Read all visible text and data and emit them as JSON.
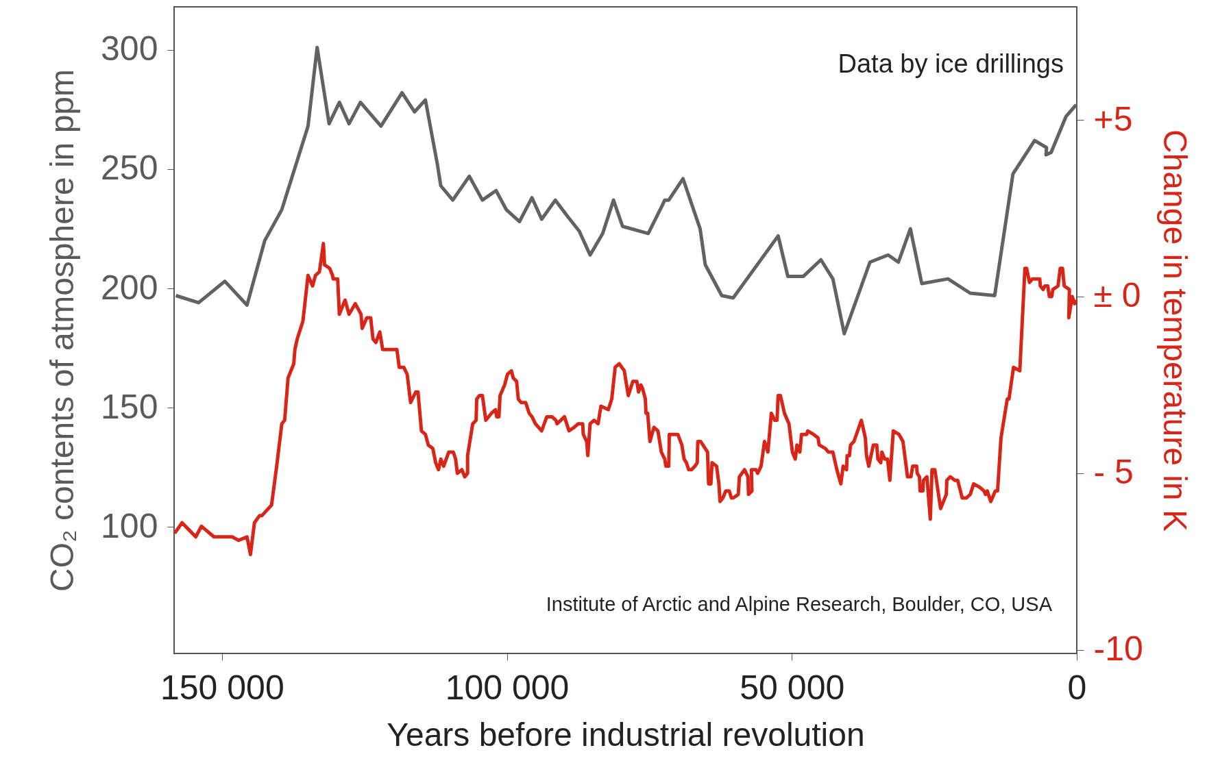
{
  "chart_data": {
    "type": "line",
    "xlabel": "Years before industrial revolution",
    "ylabel": "CO₂ contents of atmosphere in ppm",
    "y2label": "Change in temperature in  K",
    "annotations": [
      "Data by ice drillings",
      "Institute of Arctic and Alpine Research, Boulder, CO, USA"
    ],
    "xlim": [
      158400,
      0
    ],
    "xticks": [
      {
        "value": 150000,
        "label": "150 000"
      },
      {
        "value": 100000,
        "label": "100 000"
      },
      {
        "value": 50000,
        "label": "50 000"
      },
      0
    ],
    "ylim": [
      47,
      318
    ],
    "yticks": [
      100,
      150,
      200,
      250,
      300
    ],
    "y2lim": [
      -10.1,
      8.2
    ],
    "y2ticks": [
      {
        "value": 5,
        "label": "+5"
      },
      {
        "value": 0,
        "label": "± 0"
      },
      {
        "value": -5,
        "label": "- 5"
      },
      {
        "value": -10,
        "label": "-10"
      }
    ],
    "series": [
      {
        "color": "#646260",
        "axis": "y",
        "x": [
          158100,
          154100,
          149500,
          145600,
          142500,
          139500,
          134900,
          133300,
          131200,
          129400,
          127700,
          125700,
          122100,
          118400,
          116200,
          114300,
          112200,
          111600,
          109500,
          106600,
          104300,
          101900,
          100100,
          97800,
          95600,
          93900,
          91500,
          89300,
          87300,
          85400,
          83200,
          81300,
          79700,
          75200,
          72900,
          72300,
          71600,
          69100,
          66100,
          65200,
          62300,
          60300,
          52400,
          50700,
          48000,
          44900,
          42800,
          40800,
          36300,
          33100,
          31300,
          29200,
          27200,
          22600,
          18700,
          14400,
          11200,
          7400,
          5300,
          5400,
          4500,
          1900,
          100
        ],
        "values": [
          197,
          194,
          203,
          193,
          220,
          233,
          268,
          301,
          269,
          278,
          269,
          278,
          268,
          282,
          274,
          279,
          252,
          243,
          237,
          247,
          237,
          241,
          233,
          228,
          238,
          229,
          237,
          230,
          224,
          214,
          223,
          237,
          226,
          223,
          234,
          237,
          237,
          246,
          225,
          210,
          197,
          196,
          222,
          205,
          205,
          212,
          204,
          181,
          211,
          214,
          211,
          225,
          202,
          204,
          198,
          197,
          248,
          262,
          259,
          256,
          257,
          272,
          277
        ]
      },
      {
        "color": "#d92518",
        "axis": "y2",
        "x": [
          158300,
          157000,
          154600,
          153600,
          151400,
          150900,
          149500,
          148200,
          147100,
          145600,
          145000,
          144300,
          143400,
          143000,
          141300,
          140400,
          139500,
          139000,
          138400,
          137400,
          137200,
          136800,
          135800,
          134900,
          134100,
          133600,
          132900,
          132200,
          132000,
          131100,
          130600,
          130500,
          129700,
          129400,
          128400,
          127700,
          126600,
          125600,
          125400,
          124600,
          123900,
          123500,
          123000,
          122300,
          121800,
          120800,
          119300,
          118900,
          118100,
          117500,
          116900,
          116000,
          115600,
          115000,
          114300,
          113800,
          113000,
          112500,
          112000,
          111600,
          111100,
          110200,
          109400,
          109000,
          108700,
          107900,
          107400,
          106900,
          106900,
          106000,
          105400,
          105300,
          104800,
          104300,
          103700,
          102700,
          102000,
          101800,
          101400,
          101200,
          100400,
          99900,
          99200,
          98900,
          98300,
          98000,
          97500,
          96700,
          96100,
          95600,
          95000,
          93900,
          93000,
          92100,
          91400,
          91200,
          89900,
          89100,
          88200,
          87500,
          86700,
          86600,
          86000,
          85800,
          85400,
          84700,
          84000,
          83500,
          82200,
          81600,
          81000,
          80300,
          79400,
          79000,
          78700,
          77900,
          77200,
          76900,
          76500,
          76200,
          75700,
          75600,
          75300,
          74900,
          74200,
          73500,
          72900,
          72300,
          72100,
          71600,
          71500,
          70000,
          69300,
          68900,
          68500,
          68100,
          67600,
          67000,
          66600,
          66500,
          66000,
          64800,
          64600,
          64200,
          64000,
          63200,
          62800,
          62600,
          62100,
          61600,
          61000,
          60600,
          60300,
          59400,
          59200,
          58300,
          57700,
          57600,
          57000,
          57100,
          56300,
          56000,
          55400,
          54800,
          54200,
          53600,
          53000,
          52600,
          52400,
          52000,
          51300,
          50500,
          49900,
          49400,
          49100,
          48600,
          48300,
          47400,
          47200,
          46200,
          45400,
          45200,
          44100,
          43600,
          42800,
          42100,
          41400,
          41000,
          40400,
          40300,
          39900,
          39700,
          39100,
          37800,
          37100,
          36900,
          36500,
          35700,
          35100,
          34900,
          34400,
          34200,
          33700,
          33200,
          32800,
          32200,
          31200,
          30500,
          29700,
          29100,
          28800,
          28100,
          28000,
          27600,
          27500,
          27000,
          26900,
          26300,
          25700,
          25400,
          24900,
          23900,
          22900,
          22800,
          22200,
          21400,
          20900,
          20100,
          19400,
          18700,
          18100,
          17000,
          16300,
          16000,
          15700,
          15100,
          14300,
          13900,
          13300,
          12200,
          11900,
          11100,
          10000,
          9100,
          8800,
          8300,
          7800,
          7200,
          7000,
          6500,
          6400,
          5900,
          5600,
          5100,
          4800,
          4400,
          4200,
          3300,
          2900,
          2500,
          2200,
          1300,
          1400,
          800,
          400,
          100
        ],
        "values": [
          -6.7,
          -6.4,
          -6.8,
          -6.5,
          -6.8,
          -6.8,
          -6.8,
          -6.8,
          -6.9,
          -6.8,
          -7.3,
          -6.4,
          -6.2,
          -6.2,
          -5.9,
          -4.8,
          -3.6,
          -3.5,
          -2.3,
          -1.9,
          -1.5,
          -1.2,
          -0.7,
          0.6,
          0.3,
          0.6,
          0.7,
          1.5,
          0.9,
          0.8,
          0.6,
          0.5,
          0.5,
          -0.5,
          -0.1,
          -0.5,
          -0.2,
          -0.5,
          -0.9,
          -0.6,
          -0.6,
          -1.2,
          -1.3,
          -1.0,
          -1.5,
          -1.5,
          -1.5,
          -2.0,
          -2.0,
          -2.2,
          -3.0,
          -2.7,
          -2.7,
          -3.8,
          -3.9,
          -4.2,
          -4.3,
          -4.7,
          -4.9,
          -4.6,
          -4.8,
          -4.4,
          -4.4,
          -4.6,
          -5.0,
          -4.9,
          -5.1,
          -5.0,
          -4.5,
          -3.6,
          -3.5,
          -2.9,
          -2.8,
          -2.8,
          -3.5,
          -3.3,
          -3.2,
          -3.4,
          -3.4,
          -2.8,
          -2.5,
          -2.2,
          -2.1,
          -2.3,
          -2.4,
          -2.9,
          -3.0,
          -3.0,
          -3.3,
          -3.4,
          -3.6,
          -3.8,
          -3.4,
          -3.4,
          -3.5,
          -3.6,
          -3.4,
          -3.8,
          -3.7,
          -3.6,
          -3.6,
          -3.9,
          -4.1,
          -4.5,
          -3.6,
          -3.5,
          -3.6,
          -3.1,
          -3.2,
          -2.9,
          -2.0,
          -1.9,
          -2.1,
          -2.5,
          -2.8,
          -2.4,
          -2.4,
          -2.7,
          -2.5,
          -2.6,
          -2.9,
          -3.3,
          -3.3,
          -4.1,
          -3.7,
          -3.8,
          -4.4,
          -4.6,
          -4.8,
          -4.8,
          -3.9,
          -3.9,
          -4.2,
          -4.6,
          -4.7,
          -4.9,
          -4.9,
          -4.8,
          -4.7,
          -4.1,
          -4.1,
          -4.4,
          -5.3,
          -5.3,
          -4.7,
          -4.8,
          -5.3,
          -5.8,
          -5.7,
          -5.5,
          -5.5,
          -5.7,
          -5.7,
          -5.6,
          -5.1,
          -4.9,
          -5.1,
          -5.6,
          -5.5,
          -4.9,
          -4.9,
          -5.0,
          -4.8,
          -4.1,
          -4.4,
          -3.3,
          -3.5,
          -3.5,
          -2.8,
          -2.8,
          -3.3,
          -3.6,
          -4.4,
          -4.6,
          -4.2,
          -4.4,
          -3.9,
          -3.9,
          -3.8,
          -3.9,
          -4.0,
          -4.2,
          -4.3,
          -4.4,
          -4.4,
          -4.9,
          -5.3,
          -4.8,
          -4.9,
          -4.5,
          -4.5,
          -4.2,
          -4.1,
          -3.5,
          -4.0,
          -4.5,
          -4.8,
          -4.2,
          -4.2,
          -4.6,
          -4.7,
          -4.4,
          -4.6,
          -4.6,
          -5.2,
          -3.8,
          -3.9,
          -4.1,
          -5.1,
          -5.1,
          -4.8,
          -4.8,
          -5.0,
          -5.1,
          -5.5,
          -5.5,
          -5.2,
          -5.1,
          -6.3,
          -4.9,
          -4.9,
          -6.0,
          -5.6,
          -5.2,
          -5.1,
          -5.2,
          -5.2,
          -5.7,
          -5.7,
          -5.6,
          -5.3,
          -5.4,
          -5.5,
          -5.6,
          -5.5,
          -5.8,
          -5.5,
          -5.5,
          -4.0,
          -2.9,
          -2.9,
          -2.0,
          -2.1,
          0.8,
          0.8,
          0.4,
          0.5,
          0.5,
          0.5,
          0.5,
          0.3,
          0.2,
          0.3,
          0.3,
          0.0,
          0.0,
          0.2,
          0.3,
          0.8,
          0.8,
          0.3,
          0.2,
          -0.6,
          0.0,
          -0.2,
          -0.1
        ]
      }
    ]
  }
}
